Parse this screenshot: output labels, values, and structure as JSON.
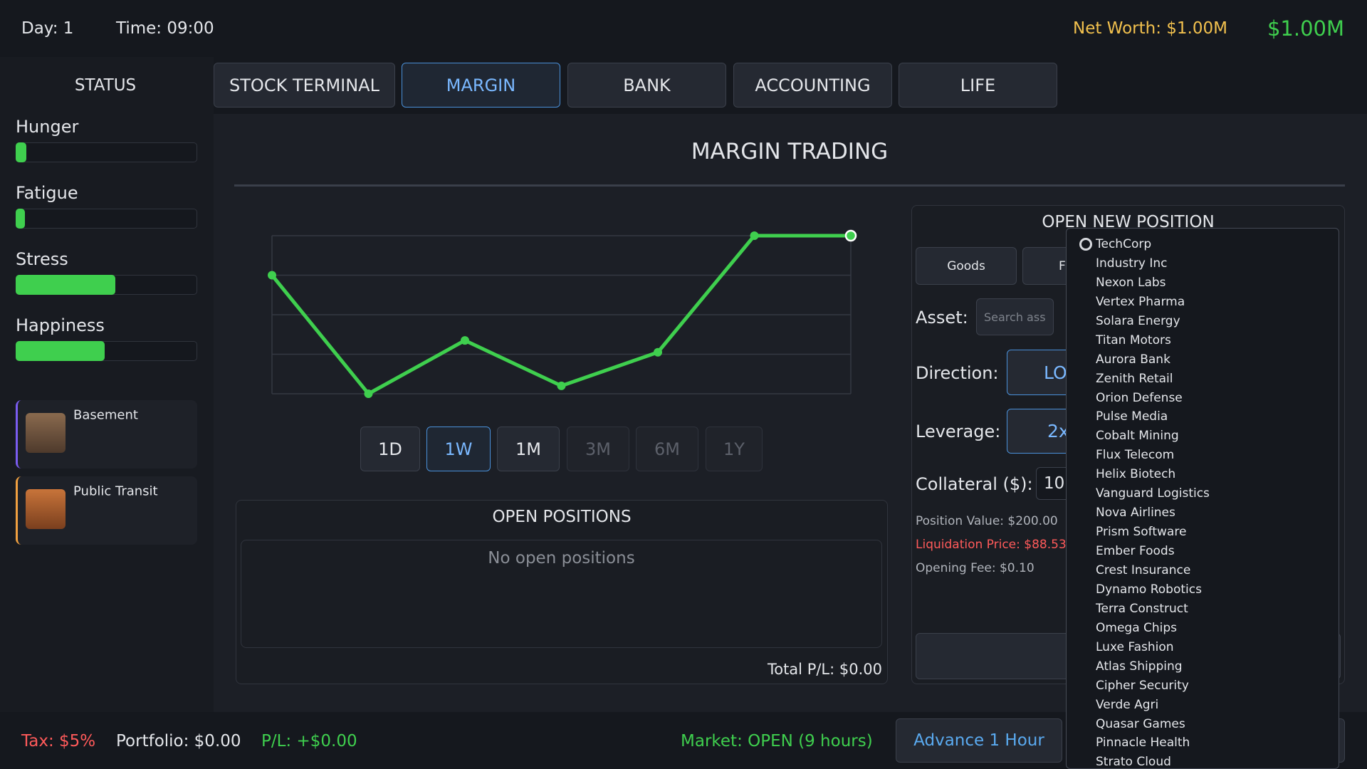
{
  "header": {
    "day": "Day: 1",
    "time": "Time: 09:00",
    "net_worth": "Net Worth: $1.00M",
    "cash": "$1.00M"
  },
  "tabs": [
    "STOCK TERMINAL",
    "MARGIN",
    "BANK",
    "ACCOUNTING",
    "LIFE"
  ],
  "sidebar": {
    "title": "STATUS",
    "range": [
      0,
      100
    ],
    "stats": [
      {
        "label": "Hunger",
        "value": 6
      },
      {
        "label": "Fatigue",
        "value": 5
      },
      {
        "label": "Stress",
        "value": 55
      },
      {
        "label": "Happiness",
        "value": 49
      }
    ],
    "locations": [
      "Basement",
      "Public Transit"
    ]
  },
  "page_title": "MARGIN TRADING",
  "chart_data": {
    "type": "line",
    "categories": [
      null,
      null,
      null,
      null,
      null,
      null,
      null
    ],
    "values": [
      3,
      0,
      1.35,
      0.2,
      1.05,
      4,
      4
    ],
    "ylim": [
      0,
      4
    ],
    "yticks": [
      0,
      1,
      2,
      3,
      4
    ],
    "grid": true,
    "color": "#3fcf4e"
  },
  "periods": [
    "1D",
    "1W",
    "1M",
    "3M",
    "6M",
    "1Y"
  ],
  "positions": {
    "title": "OPEN POSITIONS",
    "empty": "No open positions",
    "total": "Total P/L: $0.00"
  },
  "form": {
    "title": "OPEN NEW POSITION",
    "asset_types": [
      "Goods",
      "F"
    ],
    "asset_label": "Asset:",
    "asset_placeholder": "Search ass",
    "direction_label": "Direction:",
    "direction": "LO",
    "leverage_label": "Leverage:",
    "leverage": "2x",
    "collateral_label": "Collateral ($):",
    "collateral": "10",
    "position_value": "Position Value: $200.00",
    "liquidation": "Liquidation Price: $88.53",
    "fee": "Opening Fee: $0.10"
  },
  "dropdown": [
    "TechCorp",
    "Industry Inc",
    "Nexon Labs",
    "Vertex Pharma",
    "Solara Energy",
    "Titan Motors",
    "Aurora Bank",
    "Zenith Retail",
    "Orion Defense",
    "Pulse Media",
    "Cobalt Mining",
    "Flux Telecom",
    "Helix Biotech",
    "Vanguard Logistics",
    "Nova Airlines",
    "Prism Software",
    "Ember Foods",
    "Crest Insurance",
    "Dynamo Robotics",
    "Terra Construct",
    "Omega Chips",
    "Luxe Fashion",
    "Atlas Shipping",
    "Cipher Security",
    "Verde Agri",
    "Quasar Games",
    "Pinnacle Health",
    "Strato Cloud"
  ],
  "footer": {
    "tax": "Tax: $5%",
    "portfolio": "Portfolio: $0.00",
    "pl": "P/L: +$0.00",
    "market": "Market: OPEN (9 hours)",
    "advance": "Advance 1 Hour"
  }
}
